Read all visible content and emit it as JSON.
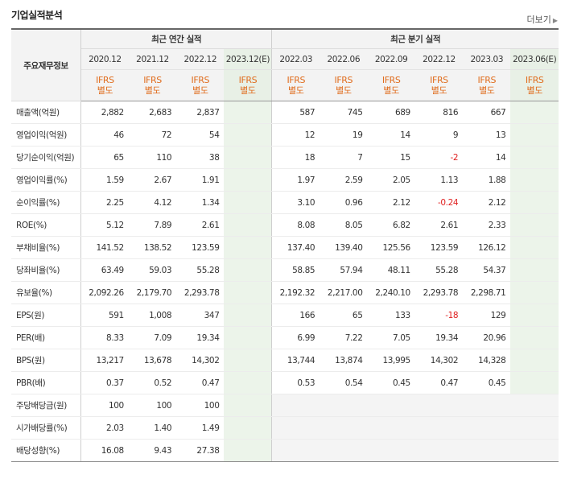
{
  "section_title": "기업실적분석",
  "more_link": "더보기",
  "header": {
    "row_label": "주요재무정보",
    "annual_group": "최근 연간 실적",
    "quarter_group": "최근 분기 실적",
    "annual_periods": [
      "2020.12",
      "2021.12",
      "2022.12",
      "2023.12(E)"
    ],
    "quarter_periods": [
      "2022.03",
      "2022.06",
      "2022.09",
      "2022.12",
      "2023.03",
      "2023.06(E)"
    ],
    "ifrs_line1": "IFRS",
    "ifrs_line2": "별도"
  },
  "rows": [
    {
      "label": "매출액(억원)",
      "annual": [
        "2,882",
        "2,683",
        "2,837",
        ""
      ],
      "quarter": [
        "587",
        "745",
        "689",
        "816",
        "667",
        ""
      ]
    },
    {
      "label": "영업이익(억원)",
      "annual": [
        "46",
        "72",
        "54",
        ""
      ],
      "quarter": [
        "12",
        "19",
        "14",
        "9",
        "13",
        ""
      ]
    },
    {
      "label": "당기순이익(억원)",
      "annual": [
        "65",
        "110",
        "38",
        ""
      ],
      "quarter": [
        "18",
        "7",
        "15",
        "-2",
        "14",
        ""
      ]
    },
    {
      "label": "영업이익률(%)",
      "annual": [
        "1.59",
        "2.67",
        "1.91",
        ""
      ],
      "quarter": [
        "1.97",
        "2.59",
        "2.05",
        "1.13",
        "1.88",
        ""
      ]
    },
    {
      "label": "순이익률(%)",
      "annual": [
        "2.25",
        "4.12",
        "1.34",
        ""
      ],
      "quarter": [
        "3.10",
        "0.96",
        "2.12",
        "-0.24",
        "2.12",
        ""
      ]
    },
    {
      "label": "ROE(%)",
      "annual": [
        "5.12",
        "7.89",
        "2.61",
        ""
      ],
      "quarter": [
        "8.08",
        "8.05",
        "6.82",
        "2.61",
        "2.33",
        ""
      ]
    },
    {
      "label": "부채비율(%)",
      "annual": [
        "141.52",
        "138.52",
        "123.59",
        ""
      ],
      "quarter": [
        "137.40",
        "139.40",
        "125.56",
        "123.59",
        "126.12",
        ""
      ]
    },
    {
      "label": "당좌비율(%)",
      "annual": [
        "63.49",
        "59.03",
        "55.28",
        ""
      ],
      "quarter": [
        "58.85",
        "57.94",
        "48.11",
        "55.28",
        "54.37",
        ""
      ]
    },
    {
      "label": "유보율(%)",
      "annual": [
        "2,092.26",
        "2,179.70",
        "2,293.78",
        ""
      ],
      "quarter": [
        "2,192.32",
        "2,217.00",
        "2,240.10",
        "2,293.78",
        "2,298.71",
        ""
      ]
    },
    {
      "label": "EPS(원)",
      "annual": [
        "591",
        "1,008",
        "347",
        ""
      ],
      "quarter": [
        "166",
        "65",
        "133",
        "-18",
        "129",
        ""
      ]
    },
    {
      "label": "PER(배)",
      "annual": [
        "8.33",
        "7.09",
        "19.34",
        ""
      ],
      "quarter": [
        "6.99",
        "7.22",
        "7.05",
        "19.34",
        "20.96",
        ""
      ]
    },
    {
      "label": "BPS(원)",
      "annual": [
        "13,217",
        "13,678",
        "14,302",
        ""
      ],
      "quarter": [
        "13,744",
        "13,874",
        "13,995",
        "14,302",
        "14,328",
        ""
      ]
    },
    {
      "label": "PBR(배)",
      "annual": [
        "0.37",
        "0.52",
        "0.47",
        ""
      ],
      "quarter": [
        "0.53",
        "0.54",
        "0.45",
        "0.47",
        "0.45",
        ""
      ]
    },
    {
      "label": "주당배당금(원)",
      "annual": [
        "100",
        "100",
        "100",
        ""
      ],
      "quarter": [
        "",
        "",
        "",
        "",
        "",
        ""
      ]
    },
    {
      "label": "시가배당률(%)",
      "annual": [
        "2.03",
        "1.40",
        "1.49",
        ""
      ],
      "quarter": [
        "",
        "",
        "",
        "",
        "",
        ""
      ]
    },
    {
      "label": "배당성향(%)",
      "annual": [
        "16.08",
        "9.43",
        "27.38",
        ""
      ],
      "quarter": [
        "",
        "",
        "",
        "",
        "",
        ""
      ]
    }
  ],
  "colors": {
    "ifrs_text": "#e06d1e",
    "negative": "#e02020",
    "estimate_bg": "#ecf4ea"
  }
}
